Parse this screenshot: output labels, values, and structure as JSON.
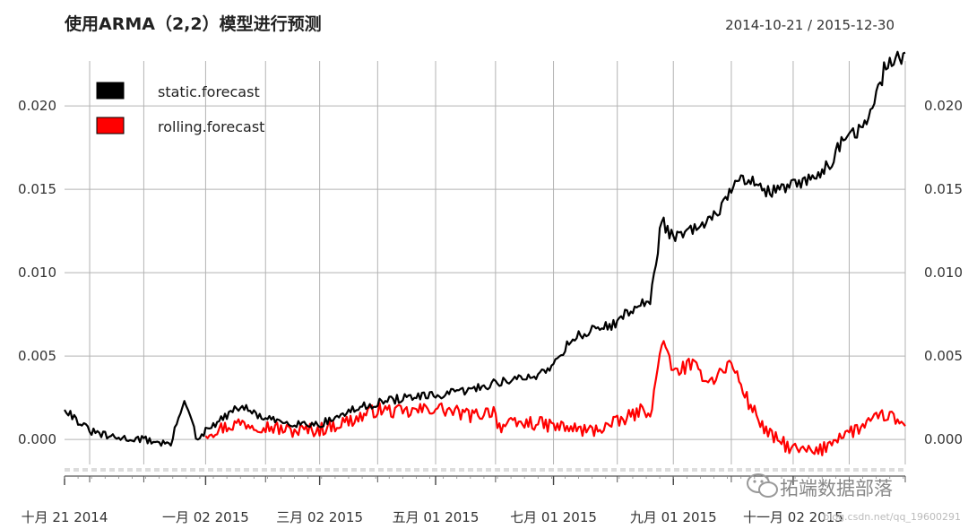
{
  "chart_data": {
    "type": "line",
    "title": "使用ARMA（2,2）模型进行预测",
    "date_range": "2014-10-21 / 2015-12-30",
    "x_range": [
      "2014-10-21",
      "2015-12-30"
    ],
    "x_tick_labels": [
      {
        "date": "2014-10-21",
        "label": "十月 21 2014"
      },
      {
        "date": "2015-01-02",
        "label": "一月 02 2015"
      },
      {
        "date": "2015-03-02",
        "label": "三月 02 2015"
      },
      {
        "date": "2015-05-01",
        "label": "五月 01 2015"
      },
      {
        "date": "2015-07-01",
        "label": "七月 01 2015"
      },
      {
        "date": "2015-09-01",
        "label": "九月 01 2015"
      },
      {
        "date": "2015-11-02",
        "label": "十一月 02 2015"
      }
    ],
    "x_minor_ticks": [
      "2014-11-03",
      "2014-12-01",
      "2015-01-02",
      "2015-02-02",
      "2015-03-02",
      "2015-04-01",
      "2015-05-01",
      "2015-06-01",
      "2015-07-01",
      "2015-08-03",
      "2015-09-01",
      "2015-10-01",
      "2015-11-02",
      "2015-12-01",
      "2015-12-30"
    ],
    "y_ticks": [
      "0.000",
      "0.005",
      "0.010",
      "0.015",
      "0.020"
    ],
    "ylim": [
      -0.0022,
      0.0242
    ],
    "grid": true,
    "legend_position": "top-left",
    "series": [
      {
        "name": "static.forecast",
        "color": "#000000",
        "x": [
          "2014-10-21",
          "2014-10-27",
          "2014-11-03",
          "2014-11-15",
          "2014-12-01",
          "2014-12-15",
          "2014-12-22",
          "2014-12-29",
          "2015-01-02",
          "2015-01-20",
          "2015-02-02",
          "2015-02-15",
          "2015-03-02",
          "2015-03-20",
          "2015-04-01",
          "2015-04-15",
          "2015-05-01",
          "2015-05-20",
          "2015-06-01",
          "2015-06-10",
          "2015-06-20",
          "2015-07-01",
          "2015-07-10",
          "2015-07-20",
          "2015-08-03",
          "2015-08-12",
          "2015-08-20",
          "2015-08-26",
          "2015-09-01",
          "2015-09-10",
          "2015-09-20",
          "2015-10-01",
          "2015-10-10",
          "2015-10-20",
          "2015-11-02",
          "2015-11-10",
          "2015-11-20",
          "2015-12-01",
          "2015-12-10",
          "2015-12-15",
          "2015-12-20",
          "2015-12-30"
        ],
        "y": [
          0.0019,
          0.0012,
          0.0005,
          0.0001,
          0.0,
          -0.0003,
          0.0025,
          -0.0002,
          0.0005,
          0.002,
          0.0012,
          0.001,
          0.0009,
          0.0018,
          0.0022,
          0.0025,
          0.0026,
          0.003,
          0.0034,
          0.0036,
          0.0037,
          0.0045,
          0.006,
          0.0065,
          0.007,
          0.008,
          0.0082,
          0.0132,
          0.012,
          0.0125,
          0.013,
          0.015,
          0.0158,
          0.0148,
          0.0152,
          0.0155,
          0.0165,
          0.0183,
          0.0188,
          0.0205,
          0.0225,
          0.0232
        ]
      },
      {
        "name": "rolling.forecast",
        "color": "#ff0000",
        "x": [
          "2015-01-02",
          "2015-01-20",
          "2015-02-02",
          "2015-02-15",
          "2015-03-02",
          "2015-03-20",
          "2015-04-01",
          "2015-04-15",
          "2015-05-01",
          "2015-05-20",
          "2015-06-01",
          "2015-06-02",
          "2015-06-20",
          "2015-07-01",
          "2015-07-20",
          "2015-08-03",
          "2015-08-15",
          "2015-08-21",
          "2015-08-26",
          "2015-09-01",
          "2015-09-10",
          "2015-09-20",
          "2015-10-01",
          "2015-10-10",
          "2015-10-20",
          "2015-11-02",
          "2015-11-15",
          "2015-11-25",
          "2015-12-05",
          "2015-12-15",
          "2015-12-20",
          "2015-12-30"
        ],
        "y": [
          0.0004,
          0.001,
          0.0008,
          0.0005,
          0.0006,
          0.0012,
          0.0018,
          0.0016,
          0.0019,
          0.0014,
          0.0018,
          0.0008,
          0.001,
          0.0008,
          0.0005,
          0.001,
          0.0017,
          0.0018,
          0.006,
          0.004,
          0.0045,
          0.0035,
          0.0046,
          0.0022,
          0.0003,
          -0.0006,
          -0.0008,
          0.0002,
          0.0006,
          0.0012,
          0.0015,
          0.0008
        ]
      }
    ]
  },
  "watermark": {
    "name": "拓端数据部落",
    "url": "blog.csdn.net/qq_19600291"
  }
}
